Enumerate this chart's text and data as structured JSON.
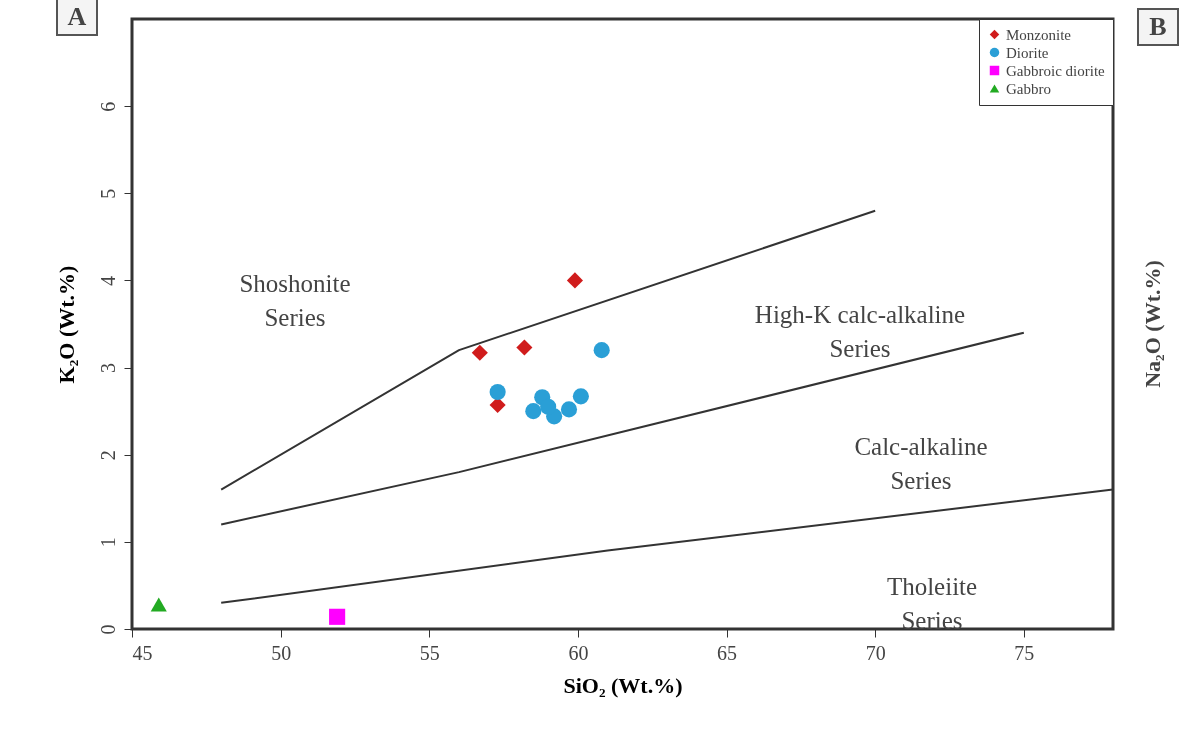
{
  "chart_data": {
    "type": "scatter",
    "xlabel": "SiO₂ (Wt.%)",
    "ylabel": "K₂O (Wt.%)",
    "xlim": [
      45,
      78
    ],
    "ylim": [
      0,
      7
    ],
    "xticks": [
      45,
      50,
      55,
      60,
      65,
      70,
      75
    ],
    "yticks": [
      0,
      1,
      2,
      3,
      4,
      5,
      6
    ],
    "grid": false,
    "legend": "top right",
    "series": [
      {
        "name": "Monzonite",
        "color": "#d01c1c",
        "marker": "diamond",
        "x": [
          59.9,
          56.7,
          58.2,
          57.3
        ],
        "values": [
          4.0,
          3.17,
          3.23,
          2.57
        ]
      },
      {
        "name": "Diorite",
        "color": "#2a9fd6",
        "marker": "circle",
        "x": [
          60.8,
          57.3,
          58.8,
          58.5,
          59.2,
          59.7,
          60.1,
          59.0
        ],
        "values": [
          3.2,
          2.72,
          2.66,
          2.5,
          2.44,
          2.52,
          2.67,
          2.55
        ]
      },
      {
        "name": "Gabbroic diorite",
        "color": "#ff00ff",
        "marker": "square",
        "x": [
          51.9
        ],
        "values": [
          0.14
        ]
      },
      {
        "name": "Gabbro",
        "color": "#22aa22",
        "marker": "triangle",
        "x": [
          45.9
        ],
        "values": [
          0.28
        ]
      },
      {
        "type": "line",
        "color": "#333333",
        "x": [
          48,
          56,
          70
        ],
        "values": [
          1.6,
          3.2,
          4.8
        ]
      },
      {
        "type": "line",
        "color": "#333333",
        "x": [
          48,
          56,
          75
        ],
        "values": [
          1.2,
          1.8,
          3.4
        ]
      },
      {
        "type": "line",
        "color": "#333333",
        "x": [
          48,
          61,
          78
        ],
        "values": [
          0.3,
          0.9,
          1.6
        ]
      }
    ],
    "annotations": [
      "Shoshonite\nSeries",
      "High-K calc-alkaline\nSeries",
      "Calc-alkaline\nSeries",
      "Tholeiite\nSeries",
      "A",
      "B",
      "Na₂O (Wt.%)"
    ]
  }
}
